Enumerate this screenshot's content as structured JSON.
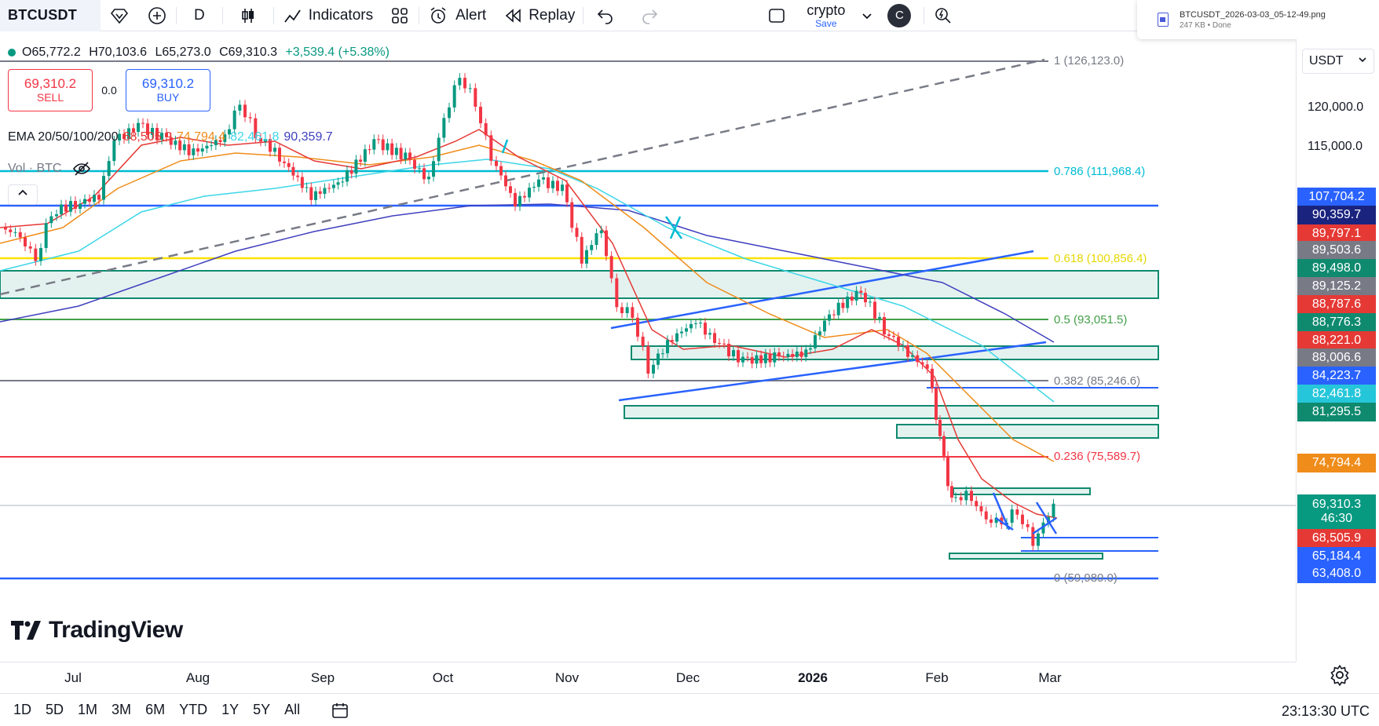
{
  "toolbar": {
    "symbol": "BTCUSDT",
    "interval": "D",
    "indicators_label": "Indicators",
    "alert_label": "Alert",
    "replay_label": "Replay",
    "layout_name": "crypto",
    "save_label": "Save",
    "avatar_letter": "C"
  },
  "download": {
    "filename": "BTCUSDT_2026-03-03_05-12-49.png",
    "meta": "247 KB • Done"
  },
  "legend": {
    "open": "O65,772.2",
    "high": "H70,103.6",
    "low": "L65,273.0",
    "close": "C69,310.3",
    "change": "+3,539.4 (+5.38%)"
  },
  "trade": {
    "sell_price": "69,310.2",
    "sell_label": "SELL",
    "spread": "0.0",
    "buy_price": "69,310.2",
    "buy_label": "BUY"
  },
  "ema": {
    "label": "EMA 20/50/100/200",
    "v20": "68,505.9",
    "v50": "74,794.4",
    "v100": "82,461.8",
    "v200": "90,359.7",
    "c20": "#e53935",
    "c50": "#ef8c1a",
    "c100": "#3dd6e8",
    "c200": "#3f3fbf"
  },
  "vol": {
    "label": "Vol · BTC"
  },
  "fib": [
    {
      "label": "1 (126,123.0)",
      "color": "#787b86"
    },
    {
      "label": "0.786 (111,968.4)",
      "color": "#00bcd4"
    },
    {
      "label": "0.618 (100,856.4)",
      "color": "#e6d800"
    },
    {
      "label": "0.5 (93,051.5)",
      "color": "#43a047"
    },
    {
      "label": "0.382 (85,246.6)",
      "color": "#787b86"
    },
    {
      "label": "0.236 (75,589.7)",
      "color": "#f23645"
    },
    {
      "label": "0 (59,980.0)",
      "color": "#787b86"
    }
  ],
  "price_scale": {
    "currency": "USDT",
    "ticks": [
      "120,000.0",
      "115,000.0"
    ],
    "tags": [
      {
        "text": "107,704.2",
        "color": "#2962ff"
      },
      {
        "text": "90,359.7",
        "color": "#1a237e"
      },
      {
        "text": "89,797.1",
        "color": "#e53935"
      },
      {
        "text": "89,503.6",
        "color": "#787b86"
      },
      {
        "text": "89,498.0",
        "color": "#0f8a6f"
      },
      {
        "text": "89,125.2",
        "color": "#787b86"
      },
      {
        "text": "88,787.6",
        "color": "#e53935"
      },
      {
        "text": "88,776.3",
        "color": "#0f8a6f"
      },
      {
        "text": "88,221.0",
        "color": "#e53935"
      },
      {
        "text": "88,006.6",
        "color": "#787b86"
      },
      {
        "text": "84,223.7",
        "color": "#2962ff"
      },
      {
        "text": "82,461.8",
        "color": "#26c6da"
      },
      {
        "text": "81,295.5",
        "color": "#0f8a6f"
      },
      {
        "text": "74,794.4",
        "color": "#ef8c1a"
      },
      {
        "text": "69,310.3",
        "countdown": "46:30",
        "color": "#089981"
      },
      {
        "text": "68,505.9",
        "color": "#e53935"
      },
      {
        "text": "65,184.4",
        "color": "#2962ff"
      },
      {
        "text": "63,408.0",
        "color": "#2962ff"
      }
    ]
  },
  "time_axis": [
    "Jul",
    "Aug",
    "Sep",
    "Oct",
    "Nov",
    "Dec",
    "2026",
    "Feb",
    "Mar"
  ],
  "ranges": [
    "1D",
    "5D",
    "1M",
    "3M",
    "6M",
    "YTD",
    "1Y",
    "5Y",
    "All"
  ],
  "clock": "23:13:30 UTC",
  "logo": "TradingView"
}
